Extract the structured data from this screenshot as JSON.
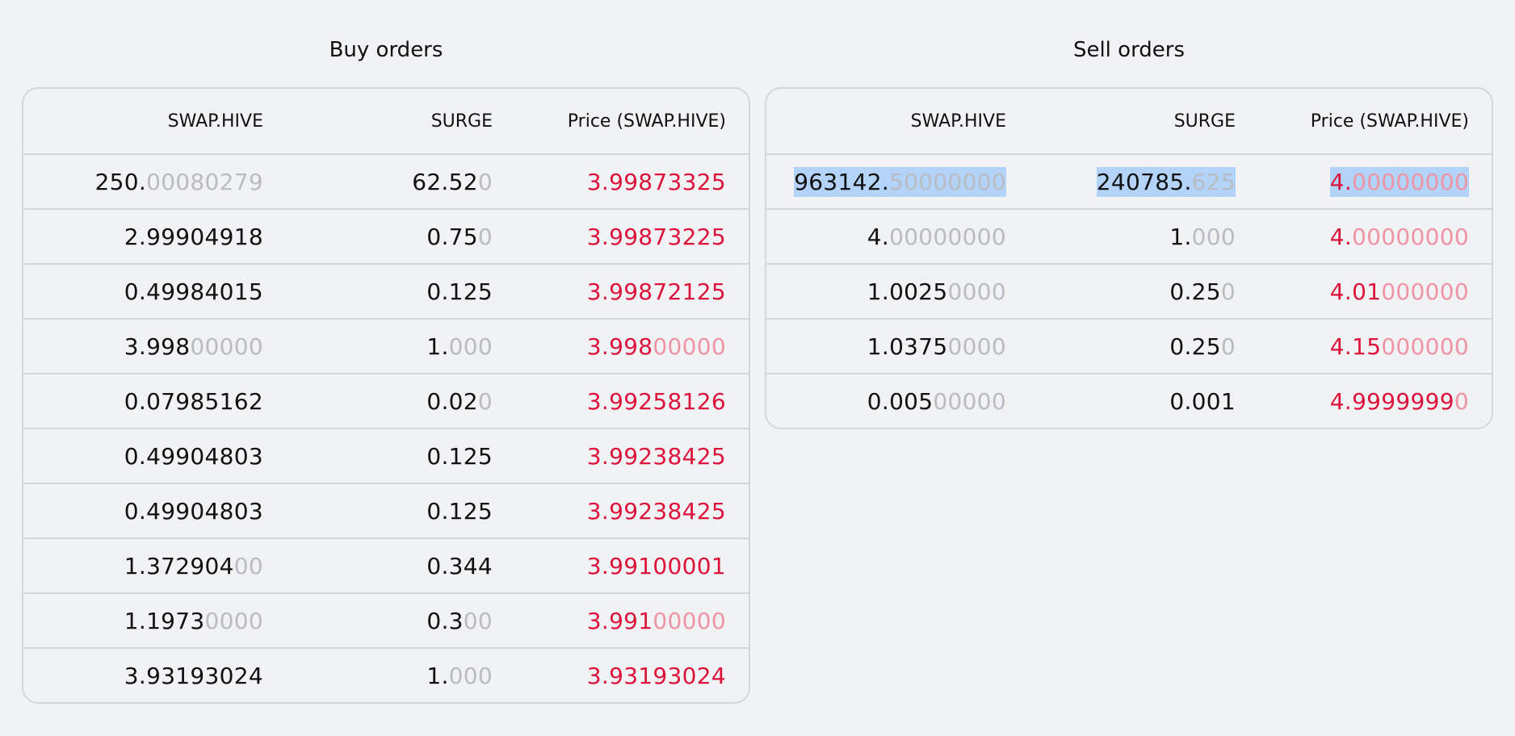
{
  "buy": {
    "title": "Buy orders",
    "headers": {
      "base": "SWAP.HIVE",
      "quote": "SURGE",
      "price": "Price (SWAP.HIVE)"
    },
    "rows": [
      {
        "base": {
          "strong": "250.",
          "faint": "00080279"
        },
        "quote": {
          "strong": "62.52",
          "faint": "0"
        },
        "price": {
          "strong": "3.99873325",
          "faint": ""
        }
      },
      {
        "base": {
          "strong": "2.99904918",
          "faint": ""
        },
        "quote": {
          "strong": "0.75",
          "faint": "0"
        },
        "price": {
          "strong": "3.99873225",
          "faint": ""
        }
      },
      {
        "base": {
          "strong": "0.49984015",
          "faint": ""
        },
        "quote": {
          "strong": "0.125",
          "faint": ""
        },
        "price": {
          "strong": "3.99872125",
          "faint": ""
        }
      },
      {
        "base": {
          "strong": "3.998",
          "faint": "00000"
        },
        "quote": {
          "strong": "1.",
          "faint": "000"
        },
        "price": {
          "strong": "3.998",
          "faint": "00000"
        }
      },
      {
        "base": {
          "strong": "0.07985162",
          "faint": ""
        },
        "quote": {
          "strong": "0.02",
          "faint": "0"
        },
        "price": {
          "strong": "3.99258126",
          "faint": ""
        }
      },
      {
        "base": {
          "strong": "0.49904803",
          "faint": ""
        },
        "quote": {
          "strong": "0.125",
          "faint": ""
        },
        "price": {
          "strong": "3.99238425",
          "faint": ""
        }
      },
      {
        "base": {
          "strong": "0.49904803",
          "faint": ""
        },
        "quote": {
          "strong": "0.125",
          "faint": ""
        },
        "price": {
          "strong": "3.99238425",
          "faint": ""
        }
      },
      {
        "base": {
          "strong": "1.372904",
          "faint": "00"
        },
        "quote": {
          "strong": "0.344",
          "faint": ""
        },
        "price": {
          "strong": "3.99100001",
          "faint": ""
        }
      },
      {
        "base": {
          "strong": "1.1973",
          "faint": "0000"
        },
        "quote": {
          "strong": "0.3",
          "faint": "00"
        },
        "price": {
          "strong": "3.991",
          "faint": "00000"
        }
      },
      {
        "base": {
          "strong": "3.93193024",
          "faint": ""
        },
        "quote": {
          "strong": "1.",
          "faint": "000"
        },
        "price": {
          "strong": "3.93193024",
          "faint": ""
        }
      }
    ]
  },
  "sell": {
    "title": "Sell orders",
    "headers": {
      "base": "SWAP.HIVE",
      "quote": "SURGE",
      "price": "Price (SWAP.HIVE)"
    },
    "rows": [
      {
        "selected": true,
        "base": {
          "strong": "963142.",
          "faint": "50000000"
        },
        "quote": {
          "strong": "240785.",
          "faint": "625"
        },
        "price": {
          "strong": "4.",
          "faint": "00000000"
        }
      },
      {
        "base": {
          "strong": "4.",
          "faint": "00000000"
        },
        "quote": {
          "strong": "1.",
          "faint": "000"
        },
        "price": {
          "strong": "4.",
          "faint": "00000000"
        }
      },
      {
        "base": {
          "strong": "1.0025",
          "faint": "0000"
        },
        "quote": {
          "strong": "0.25",
          "faint": "0"
        },
        "price": {
          "strong": "4.01",
          "faint": "000000"
        }
      },
      {
        "base": {
          "strong": "1.0375",
          "faint": "0000"
        },
        "quote": {
          "strong": "0.25",
          "faint": "0"
        },
        "price": {
          "strong": "4.15",
          "faint": "000000"
        }
      },
      {
        "base": {
          "strong": "0.005",
          "faint": "00000"
        },
        "quote": {
          "strong": "0.001",
          "faint": ""
        },
        "price": {
          "strong": "4.9999999",
          "faint": "0"
        }
      }
    ]
  }
}
